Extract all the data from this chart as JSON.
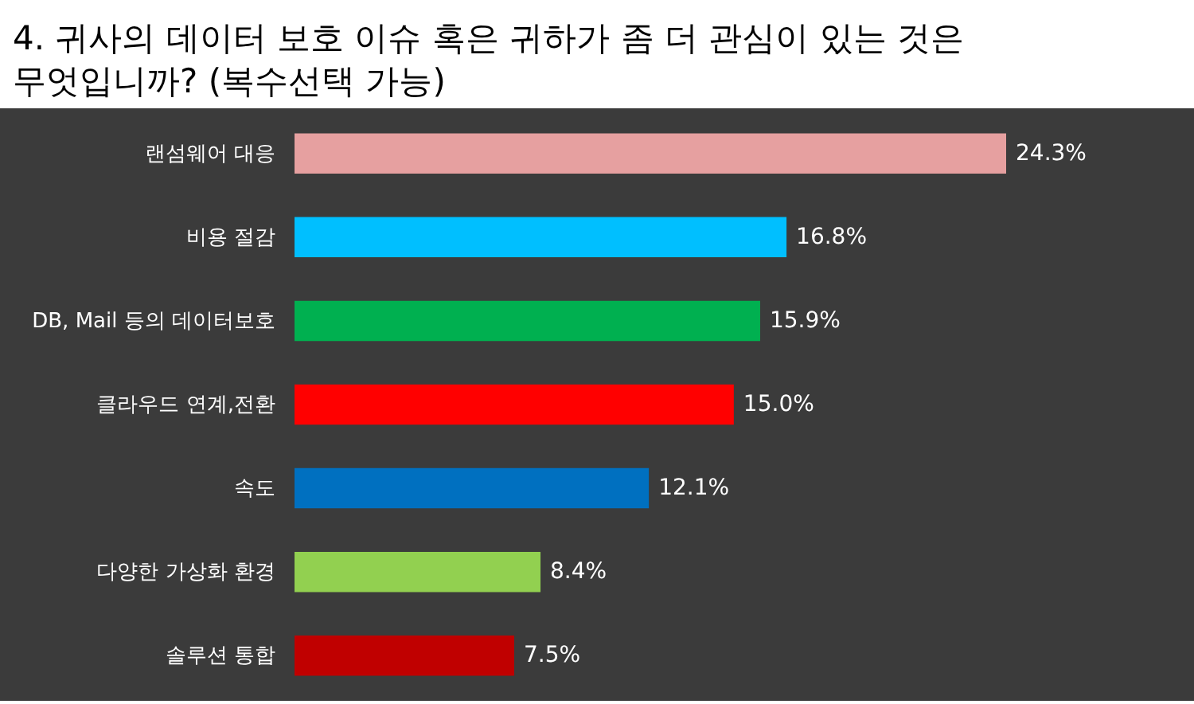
{
  "chart_data": {
    "type": "bar",
    "orientation": "horizontal",
    "title": "4. 귀사의 데이터 보호 이슈 혹은 귀하가 좀 더 관심이 있는 것은 무엇입니까? (복수선택 가능)",
    "categories": [
      "랜섬웨어 대응",
      "비용 절감",
      "DB, Mail 등의 데이터보호",
      "클라우드 연계,전환",
      "속도",
      "다양한 가상화 환경",
      "솔루션 통합"
    ],
    "values": [
      24.3,
      16.8,
      15.9,
      15.0,
      12.1,
      8.4,
      7.5
    ],
    "colors": [
      "#e6a0a0",
      "#00bfff",
      "#00b050",
      "#ff0000",
      "#0070c0",
      "#92d050",
      "#c00000"
    ],
    "value_labels": [
      "24.3%",
      "16.8%",
      "15.9%",
      "15.0%",
      "12.1%",
      "8.4%",
      "7.5%"
    ],
    "tick_labels": "y"
  }
}
